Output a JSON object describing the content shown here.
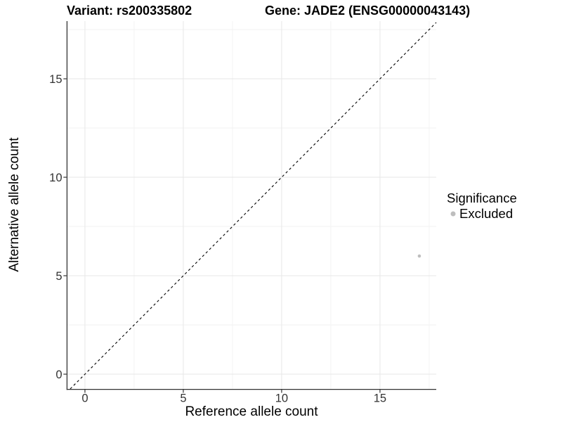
{
  "header": {
    "variant_title": "Variant: rs200335802",
    "gene_title": "Gene: JADE2 (ENSG00000043143)"
  },
  "chart_data": {
    "type": "scatter",
    "title": "Variant: rs200335802 — Gene: JADE2 (ENSG00000043143)",
    "xlabel": "Reference allele count",
    "ylabel": "Alternative allele count",
    "xlim": [
      -0.89,
      17.86
    ],
    "ylim": [
      -0.75,
      17.93
    ],
    "xticks": [
      0,
      5,
      10,
      15
    ],
    "yticks": [
      0,
      5,
      10,
      15
    ],
    "minor_grid_step": 2.5,
    "grid": "major+minor",
    "series": [
      {
        "name": "Excluded",
        "type": "scatter",
        "color": "#bebebe",
        "point_radius": 2.3,
        "points": [
          {
            "x": 17,
            "y": 6
          }
        ]
      }
    ],
    "reference_line": {
      "kind": "identity",
      "equation": "y = x",
      "style": "dashed",
      "color": "#000000"
    },
    "legend": {
      "title": "Significance",
      "position": "right",
      "entries": [
        {
          "label": "Excluded",
          "color": "#bebebe"
        }
      ]
    }
  },
  "colors": {
    "background": "#ffffff",
    "grid_major": "#e7e7e7",
    "grid_minor": "#f2f2f2",
    "axis_line": "#333333",
    "tick_mark": "#333333",
    "tick_label": "#333333",
    "point": "#bebebe"
  }
}
